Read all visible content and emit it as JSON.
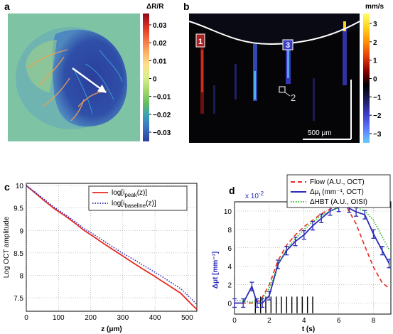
{
  "panels": {
    "a": {
      "letter": "a",
      "colorbar_title": "ΔR/R",
      "colorbar_ticks": [
        "0.03",
        "0.02",
        "0.01",
        "0",
        "−0.01",
        "−0.02",
        "−0.03"
      ],
      "colormap": [
        "#8b0a1e",
        "#d7301f",
        "#f46d43",
        "#fdae61",
        "#fee08b",
        "#d9ef8b",
        "#a6d96a",
        "#66bd63",
        "#3a9fb8",
        "#3b6fc0",
        "#2c3e9e"
      ]
    },
    "b": {
      "letter": "b",
      "colorbar_title": "mm/s",
      "colorbar_ticks": [
        "3",
        "2",
        "1",
        "0",
        "−1",
        "−2",
        "−3"
      ],
      "colormap": [
        "#ffff66",
        "#ffd11a",
        "#ff8c00",
        "#e83a0a",
        "#8b0000",
        "#000000",
        "#1a1a5e",
        "#3c3cc8",
        "#5a78ff",
        "#66ccff"
      ],
      "scalebar_label": "500 μm",
      "region_labels": [
        "1",
        "3",
        "2"
      ]
    }
  },
  "chart_data": [
    {
      "type": "line",
      "panel": "c",
      "xlabel": "z (μm)",
      "ylabel": "Log OCT amplitude",
      "xlim": [
        0,
        530
      ],
      "ylim": [
        7.2,
        10.05
      ],
      "xticks": [
        "0",
        "100",
        "200",
        "300",
        "400",
        "500"
      ],
      "yticks": [
        "7.5",
        "8",
        "8.5",
        "9",
        "9.5",
        "10"
      ],
      "grid": true,
      "legend_placement": "top-right",
      "series": [
        {
          "name": "log[i_peak(z)]",
          "label_main": "log[i",
          "label_sub": "peak",
          "label_tail": "(z)]",
          "color": "#e8281e",
          "style": "solid",
          "x": [
            0,
            30,
            60,
            90,
            120,
            150,
            180,
            210,
            240,
            270,
            300,
            330,
            360,
            390,
            420,
            450,
            480,
            510,
            530
          ],
          "y": [
            10.0,
            9.82,
            9.64,
            9.47,
            9.33,
            9.17,
            9.0,
            8.86,
            8.71,
            8.57,
            8.43,
            8.29,
            8.15,
            8.02,
            7.88,
            7.74,
            7.6,
            7.38,
            7.24
          ]
        },
        {
          "name": "log[i_baseline(z)]",
          "label_main": "log[i",
          "label_sub": "baseline",
          "label_tail": "(z)]",
          "color": "#2b2bb8",
          "style": "dotted",
          "x": [
            0,
            30,
            60,
            90,
            120,
            150,
            180,
            210,
            240,
            270,
            300,
            330,
            360,
            390,
            420,
            450,
            480,
            510,
            530
          ],
          "y": [
            10.0,
            9.84,
            9.67,
            9.5,
            9.36,
            9.21,
            9.04,
            8.91,
            8.77,
            8.63,
            8.49,
            8.37,
            8.24,
            8.11,
            7.98,
            7.84,
            7.7,
            7.5,
            7.35
          ]
        }
      ]
    },
    {
      "type": "line",
      "panel": "d",
      "xlabel": "t (s)",
      "ylabel": "Δμt [mm⁻¹]",
      "y_multiplier": "x 10",
      "y_multiplier_exp": "-2",
      "xlim": [
        0,
        9
      ],
      "ylim": [
        -1.2,
        11
      ],
      "xticks": [
        "0",
        "2",
        "4",
        "6",
        "8"
      ],
      "yticks": [
        "0",
        "2",
        "4",
        "6",
        "8",
        "10"
      ],
      "grid": true,
      "legend_placement": "above-top-right",
      "stimulus_marks_t": [
        1.2,
        1.5,
        1.8,
        2.1,
        2.4,
        2.7,
        3.0,
        3.3,
        3.6,
        3.9,
        4.2,
        4.5
      ],
      "series": [
        {
          "name": "Flow (A.U., OCT)",
          "color": "#e8281e",
          "style": "dashed",
          "x": [
            0,
            0.5,
            1,
            1.5,
            2,
            2.5,
            3,
            3.5,
            4,
            4.5,
            5,
            5.5,
            6,
            6.5,
            7,
            7.5,
            8,
            8.5,
            8.9
          ],
          "y": [
            0,
            0,
            0,
            0.3,
            2.0,
            4.6,
            6.3,
            7.4,
            8.3,
            9.0,
            9.7,
            10.2,
            10.7,
            10.3,
            8.6,
            6.2,
            3.9,
            2.2,
            1.6
          ]
        },
        {
          "name": "Δμt (mm⁻¹, OCT)",
          "label_main": "Δμ",
          "label_sub": "t",
          "label_tail": " (mm⁻¹, OCT)",
          "color": "#2b2bb8",
          "style": "solid",
          "x": [
            0,
            0.5,
            1,
            1.3,
            1.6,
            2,
            2.5,
            3,
            3.5,
            4,
            4.5,
            5,
            5.5,
            6,
            6.3,
            6.6,
            7,
            7.5,
            8,
            8.5,
            8.9
          ],
          "y": [
            0,
            0,
            1.8,
            0,
            0,
            0.8,
            4.2,
            5.7,
            6.7,
            7.4,
            8.4,
            9.2,
            10.0,
            10.4,
            11.0,
            10.3,
            9.9,
            9.6,
            7.5,
            5.7,
            4.3
          ]
        },
        {
          "name": "ΔHBT (A.U., OISI)",
          "color": "#22bb22",
          "style": "dotted",
          "x": [
            0,
            0.5,
            1,
            1.5,
            2,
            2.5,
            3,
            3.5,
            4,
            4.5,
            5,
            5.5,
            6,
            6.5,
            7,
            7.5,
            8,
            8.5,
            8.9
          ],
          "y": [
            0.3,
            0.2,
            0.1,
            0.2,
            1.6,
            4.1,
            5.9,
            7.0,
            8.0,
            8.8,
            9.5,
            10.0,
            10.4,
            10.6,
            10.4,
            10.0,
            9.0,
            7.2,
            5.8
          ]
        }
      ]
    }
  ]
}
